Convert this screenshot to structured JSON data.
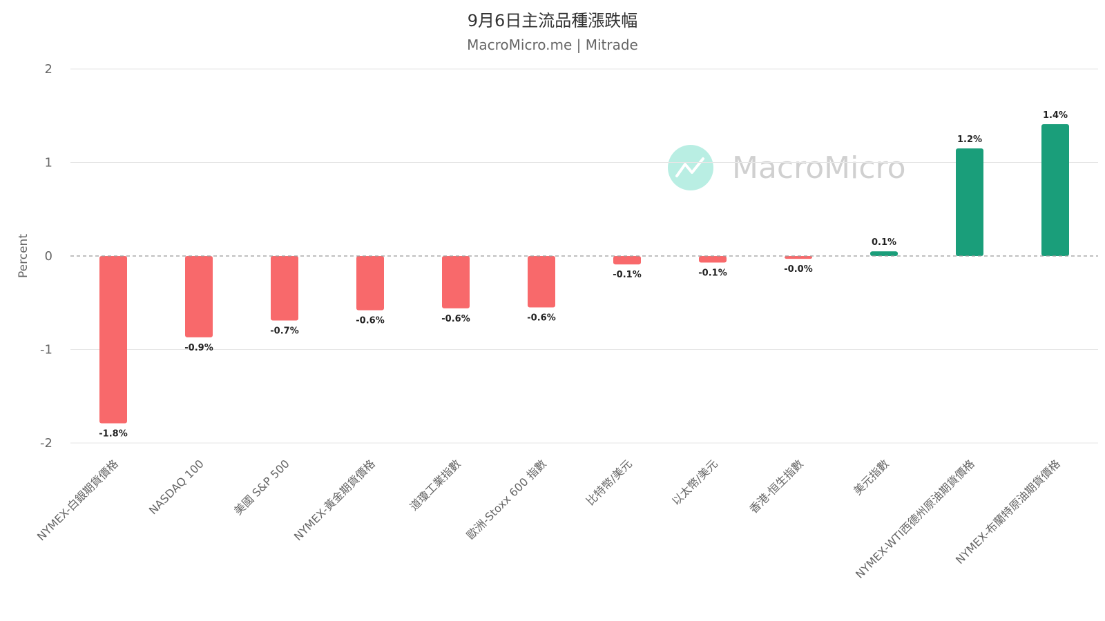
{
  "chart_data": {
    "type": "bar",
    "title": "9月6日主流品種漲跌幅",
    "subtitle": "MacroMicro.me | Mitrade",
    "ylabel": "Percent",
    "xlabel": "",
    "ylim": [
      -2,
      2
    ],
    "yticks": [
      2,
      1,
      0,
      -1,
      -2
    ],
    "grid": true,
    "legend": "none",
    "categories": [
      "NYMEX-白銀期貨價格",
      "NASDAQ 100",
      "美國 S&P 500",
      "NYMEX-黃金期貨價格",
      "道瓊工業指數",
      "歐洲-Stoxx 600 指數",
      "比特幣/美元",
      "以太幣/美元",
      "香港-恒生指數",
      "美元指數",
      "NYMEX-WTI西德州原油期貨價格",
      "NYMEX-布蘭特原油期貨價格"
    ],
    "values": [
      -1.79,
      -0.87,
      -0.69,
      -0.58,
      -0.56,
      -0.55,
      -0.09,
      -0.07,
      -0.03,
      0.05,
      1.15,
      1.41
    ],
    "data_labels": [
      "-1.8%",
      "-0.9%",
      "-0.7%",
      "-0.6%",
      "-0.6%",
      "-0.6%",
      "-0.1%",
      "-0.1%",
      "-0.0%",
      "0.1%",
      "1.2%",
      "1.4%"
    ],
    "colors": {
      "negative": "#f8696b",
      "positive": "#1a9e7a"
    }
  },
  "watermark": {
    "text": "MacroMicro",
    "icon": "macromicro-logo-icon",
    "color": "#b9eee3"
  }
}
